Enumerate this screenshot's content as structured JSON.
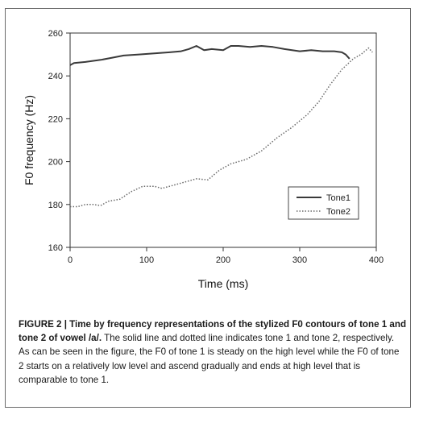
{
  "figure": {
    "caption_bold": "FIGURE 2 | Time by frequency representations of the stylized F0 contours of tone 1 and tone 2 of vowel /a/.",
    "caption_text": " The solid line and dotted line indicates tone 1 and tone 2, respectively. As can be seen in the figure, the F0 of tone 1 is steady on the high level while the F0 of tone 2 starts on a relatively low level and ascend gradually and ends at high level that is comparable to tone 1."
  },
  "chart_data": {
    "type": "line",
    "title": "",
    "xlabel": "Time (ms)",
    "ylabel": "F0 frequency (Hz)",
    "xlim": [
      0,
      400
    ],
    "ylim": [
      160,
      260
    ],
    "xticks": [
      0,
      100,
      200,
      300,
      400
    ],
    "yticks": [
      160,
      180,
      200,
      220,
      240,
      260
    ],
    "grid": false,
    "legend_position": "bottom-right",
    "series": [
      {
        "name": "Tone1",
        "style": "solid",
        "color": "#3a3a3a",
        "x": [
          0,
          5,
          20,
          40,
          55,
          70,
          90,
          110,
          130,
          145,
          155,
          165,
          175,
          185,
          200,
          210,
          220,
          235,
          250,
          265,
          280,
          300,
          315,
          330,
          345,
          355,
          360,
          365
        ],
        "y": [
          245,
          246,
          246.5,
          247.5,
          248.5,
          249.5,
          250,
          250.5,
          251,
          251.5,
          252.5,
          254,
          252,
          252.5,
          252,
          254,
          254,
          253.5,
          254,
          253.5,
          252.5,
          251.5,
          252,
          251.5,
          251.5,
          251,
          250,
          248
        ]
      },
      {
        "name": "Tone2",
        "style": "dotted",
        "color": "#6a6a6a",
        "x": [
          0,
          10,
          20,
          30,
          40,
          50,
          65,
          80,
          95,
          110,
          120,
          135,
          150,
          165,
          180,
          195,
          210,
          230,
          250,
          270,
          290,
          310,
          325,
          340,
          355,
          370,
          380,
          390,
          395
        ],
        "y": [
          179,
          179,
          180,
          180,
          179.5,
          181.5,
          182.5,
          186,
          188.5,
          188.5,
          187.5,
          189,
          190.5,
          192,
          191.5,
          196,
          199,
          201,
          205,
          211,
          216,
          222,
          228,
          236,
          243,
          248,
          250,
          253,
          251
        ]
      }
    ]
  }
}
